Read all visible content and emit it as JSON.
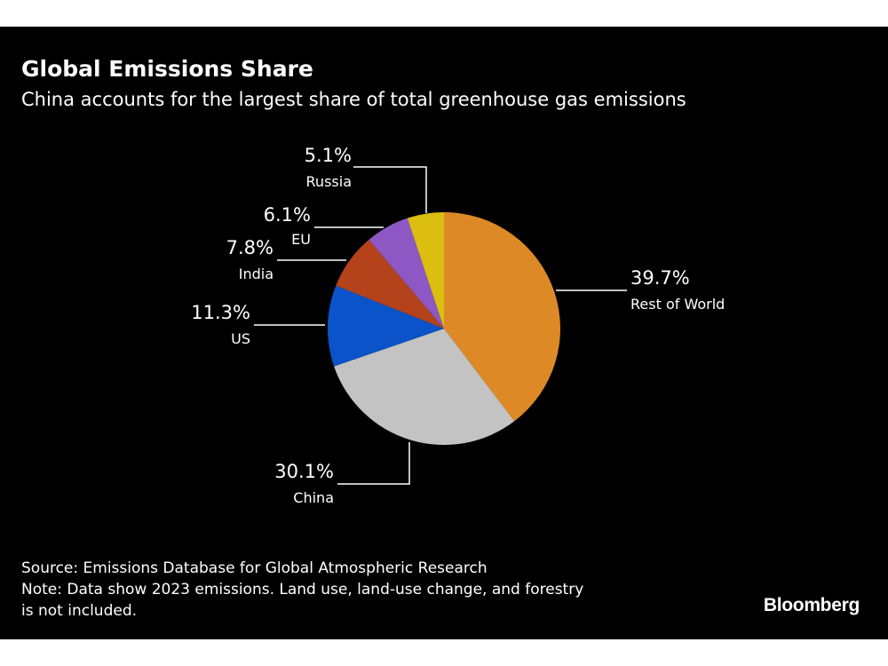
{
  "title": "Global Emissions Share",
  "subtitle": "China accounts for the largest share of total greenhouse gas emissions",
  "chart_data": {
    "type": "pie",
    "slices": [
      {
        "label": "Rest of World",
        "value": 39.7,
        "value_label": "39.7%",
        "color": "#dd8a26"
      },
      {
        "label": "China",
        "value": 30.1,
        "value_label": "30.1%",
        "color": "#c3c3c3"
      },
      {
        "label": "US",
        "value": 11.3,
        "value_label": "11.3%",
        "color": "#0b53c8"
      },
      {
        "label": "India",
        "value": 7.8,
        "value_label": "7.8%",
        "color": "#b4421b"
      },
      {
        "label": "EU",
        "value": 6.1,
        "value_label": "6.1%",
        "color": "#8d58c4"
      },
      {
        "label": "Russia",
        "value": 5.1,
        "value_label": "5.1%",
        "color": "#dbbe10"
      }
    ],
    "start": "12 o'clock",
    "direction": "clockwise"
  },
  "footer": {
    "source": "Source: Emissions Database for Global Atmospheric Research",
    "note_line1": "Note: Data show 2023 emissions. Land use, land-use change, and forestry",
    "note_line2": "is not included.",
    "brand": "Bloomberg"
  },
  "colors": {
    "background": "#000000",
    "text": "#ffffff"
  }
}
